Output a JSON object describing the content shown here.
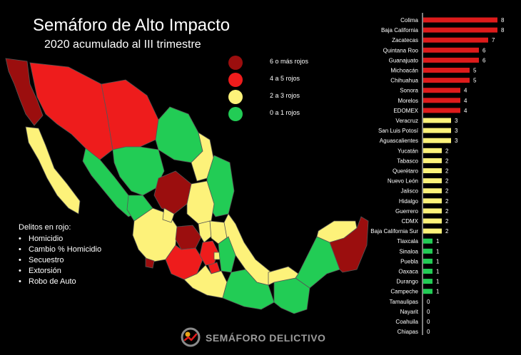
{
  "title": "Semáforo de Alto Impacto",
  "subtitle": "2020 acumulado al III trimestre",
  "legend": [
    {
      "label": "6 o más rojos",
      "color": "#9b0e0e"
    },
    {
      "label": "4 a 5 rojos",
      "color": "#ee1c1c"
    },
    {
      "label": "2 a 3  rojos",
      "color": "#fdf27a"
    },
    {
      "label": "0 a 1 rojos",
      "color": "#22cc55"
    }
  ],
  "crimes": {
    "title": "Delitos en rojo:",
    "items": [
      "Homicidio",
      "Cambio % Homicidio",
      "Secuestro",
      "Extorsión",
      "Robo de Auto"
    ]
  },
  "logo_text": "SEMÁFORO DELICTIVO",
  "colors": {
    "level_6_plus": "#9b0e0e",
    "level_4_5": "#ee1c1c",
    "level_2_3": "#fdf27a",
    "level_0_1": "#22cc55",
    "bar_red": "#dd1b1b",
    "bar_yellow": "#fdf27a",
    "bar_green": "#22cc55"
  },
  "chart_data": {
    "type": "bar",
    "orientation": "horizontal",
    "categories": [
      "Colima",
      "Baja California",
      "Zacatecas",
      "Quintana Roo",
      "Guanajuato",
      "Michoacán",
      "Chihuahua",
      "Sonora",
      "Morelos",
      "EDOMEX",
      "Veracruz",
      "San Luis Potosí",
      "Aguascalientes",
      "Yucatán",
      "Tabasco",
      "Querétaro",
      "Nuevo León",
      "Jalisco",
      "Hidalgo",
      "Guerrero",
      "CDMX",
      "Baja California Sur",
      "Tlaxcala",
      "Sinaloa",
      "Puebla",
      "Oaxaca",
      "Durango",
      "Campeche",
      "Tamaulipas",
      "Nayarit",
      "Coahuila",
      "Chiapas"
    ],
    "values": [
      8,
      8,
      7,
      6,
      6,
      5,
      5,
      4,
      4,
      4,
      3,
      3,
      3,
      2,
      2,
      2,
      2,
      2,
      2,
      2,
      2,
      2,
      1,
      1,
      1,
      1,
      1,
      1,
      0,
      0,
      0,
      0
    ],
    "xlim": [
      0,
      8
    ],
    "grid": false
  }
}
